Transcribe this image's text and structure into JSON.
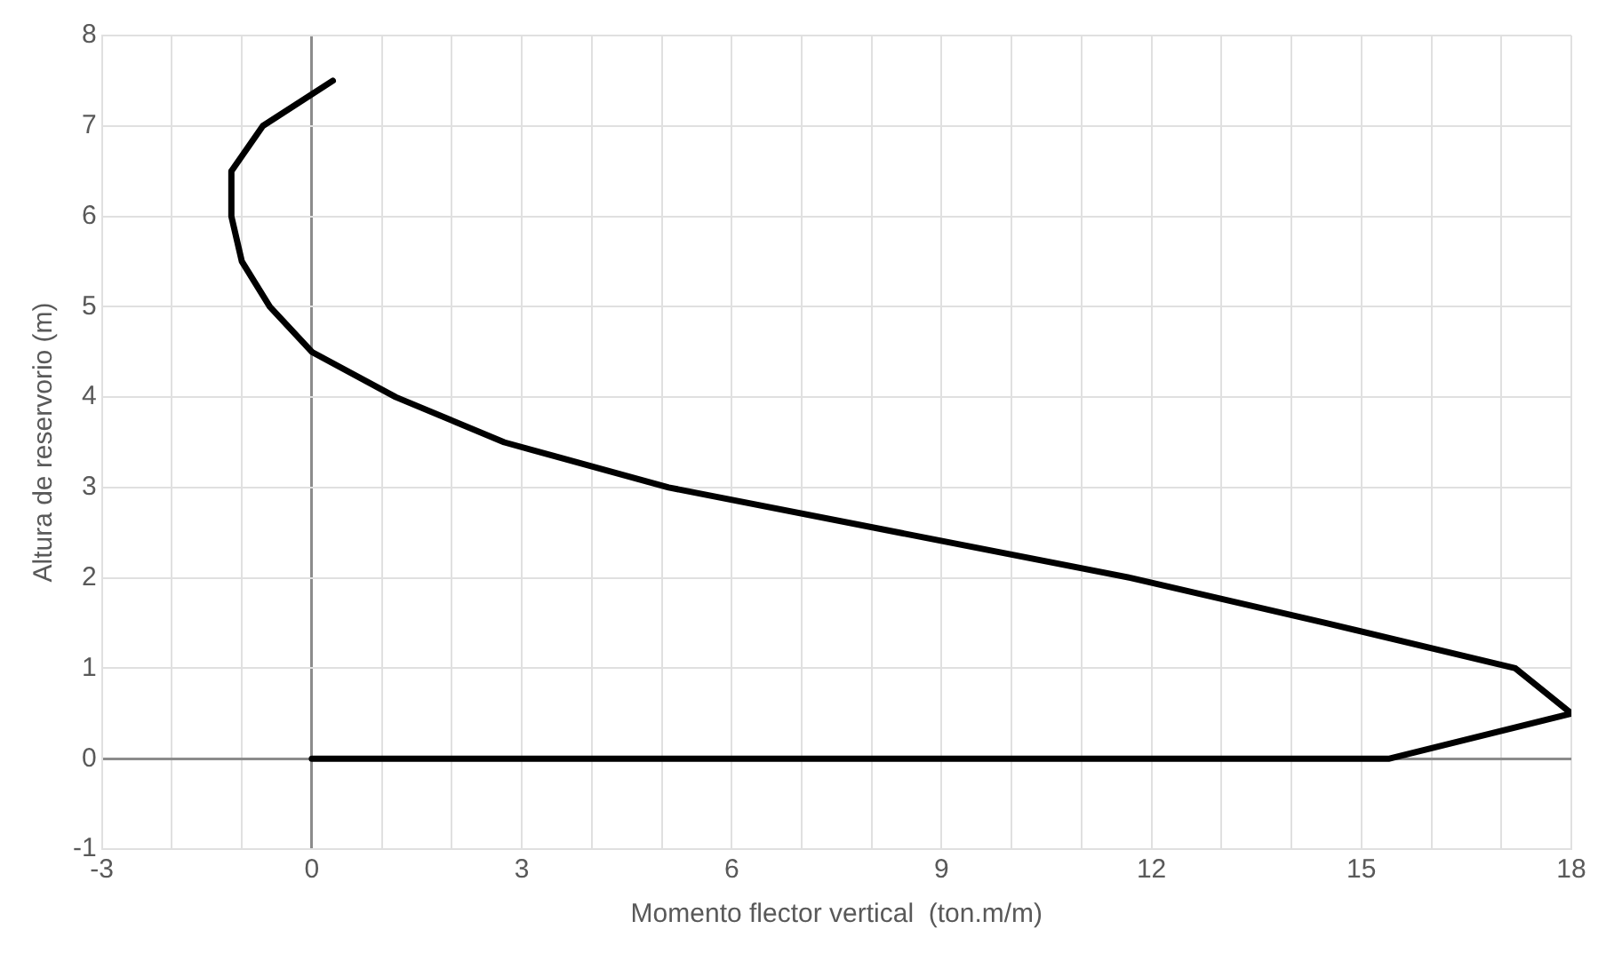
{
  "chart_data": {
    "type": "line",
    "xlabel": "Momento flector vertical  (ton.m/m)",
    "ylabel": "Altura de reservorio (m)",
    "x": [
      0.3,
      -0.7,
      -1.15,
      -1.15,
      -1.0,
      -0.6,
      0,
      1.2,
      2.75,
      5.1,
      8.4,
      11.7,
      14.5,
      17.2,
      18,
      15.4,
      0
    ],
    "series": [
      {
        "color": "#000000",
        "values": [
          7.5,
          7,
          6.5,
          6,
          5.5,
          5,
          4.5,
          4,
          3.5,
          3,
          2.5,
          2,
          1.5,
          1,
          0.5,
          0,
          0
        ]
      }
    ],
    "xlim": [
      -3,
      18
    ],
    "ylim": [
      -1,
      8
    ],
    "xticks": [
      -3,
      {
        "value": -2,
        "label": null
      },
      {
        "value": -1,
        "label": null
      },
      0,
      {
        "value": 1,
        "label": null
      },
      {
        "value": 2,
        "label": null
      },
      3,
      {
        "value": 4,
        "label": null
      },
      {
        "value": 5,
        "label": null
      },
      6,
      {
        "value": 7,
        "label": null
      },
      {
        "value": 8,
        "label": null
      },
      9,
      {
        "value": 10,
        "label": null
      },
      {
        "value": 11,
        "label": null
      },
      12,
      {
        "value": 13,
        "label": null
      },
      {
        "value": 14,
        "label": null
      },
      15,
      {
        "value": 16,
        "label": null
      },
      {
        "value": 17,
        "label": null
      },
      18
    ],
    "yticks": [
      -1,
      0,
      1,
      2,
      3,
      4,
      5,
      6,
      7,
      8
    ],
    "grid": true,
    "legend": false,
    "marker": "none",
    "line_style": "solid"
  }
}
